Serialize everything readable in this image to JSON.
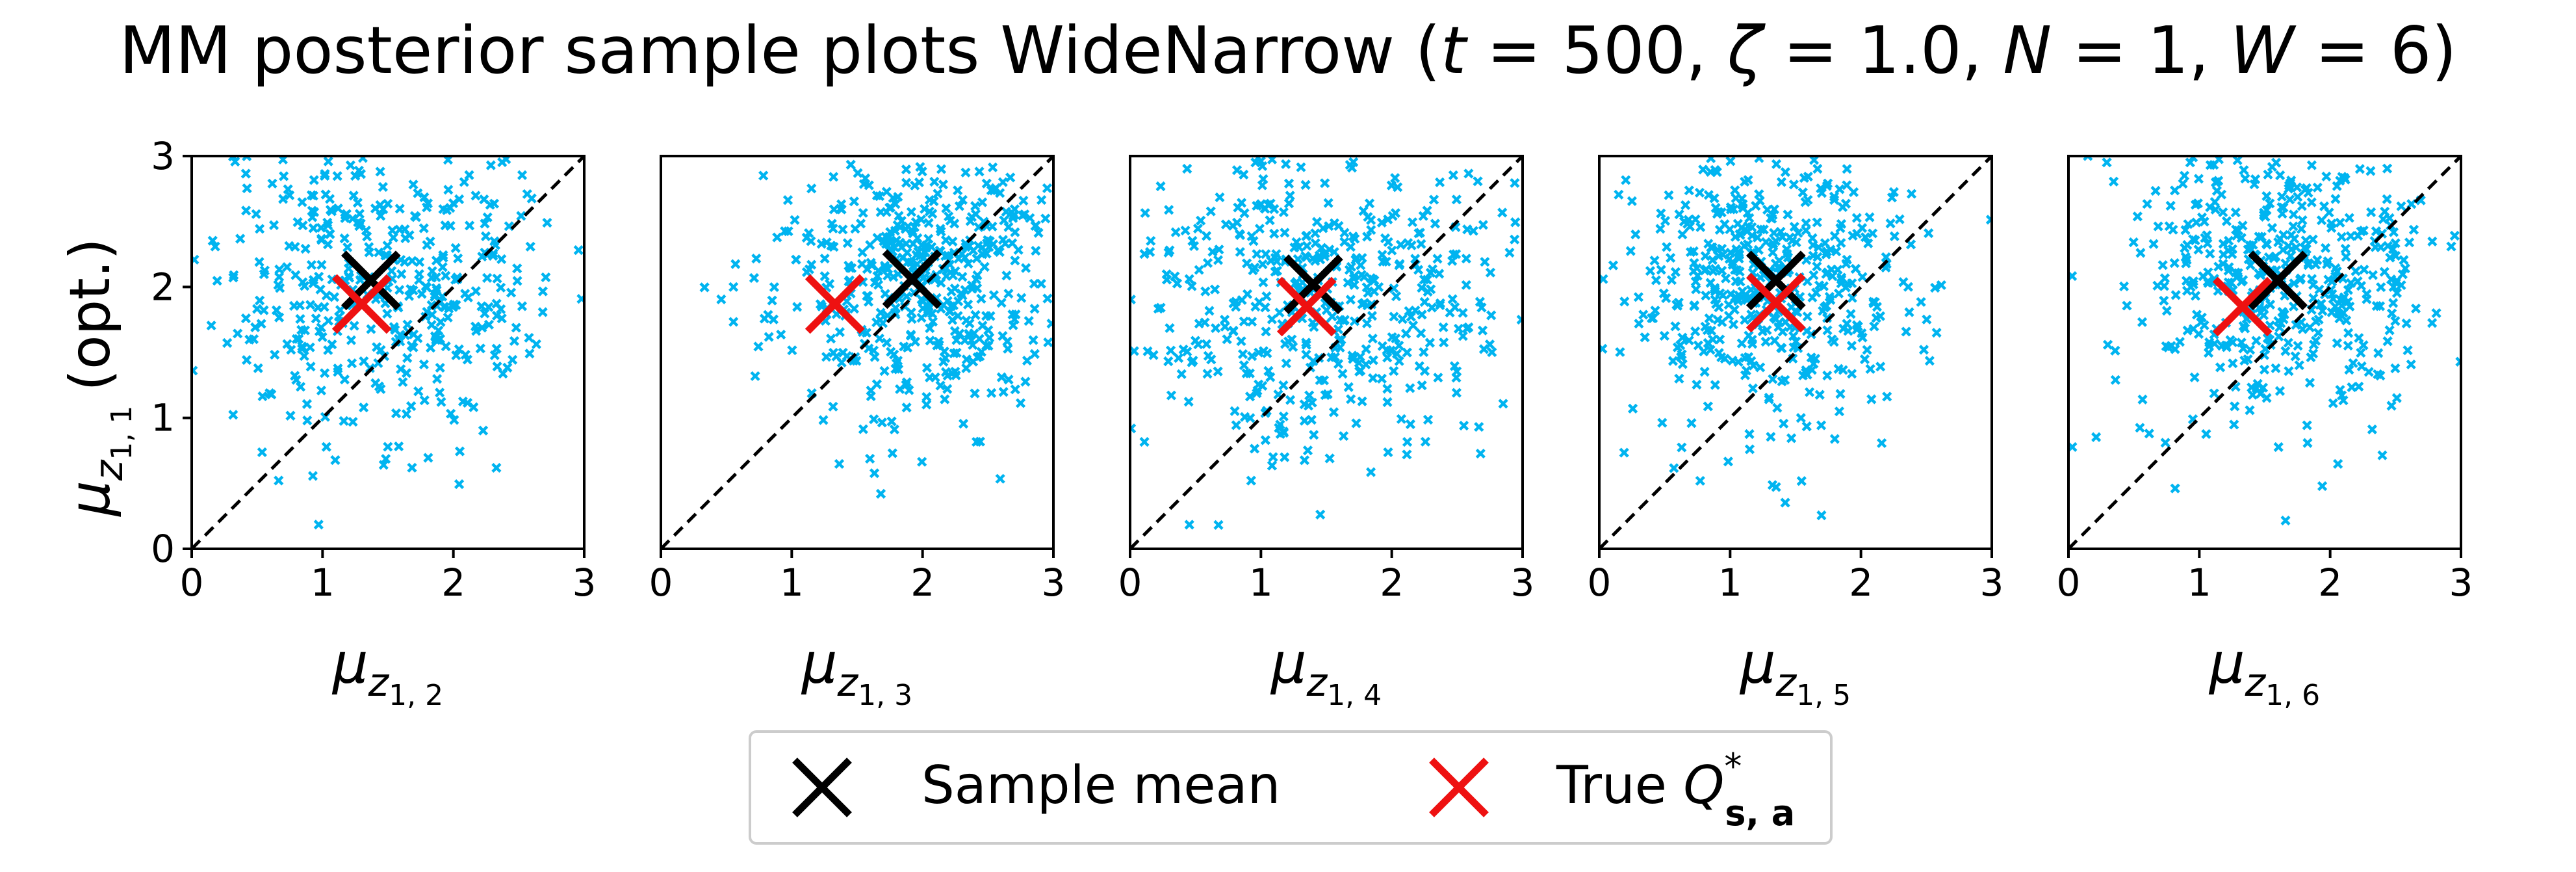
{
  "chart_data": {
    "type": "scatter",
    "title_parts": {
      "prefix": "MM posterior sample plots WideNarrow (",
      "t_sym": "t",
      "t_val": " = 500, ",
      "zeta_sym": "ζ",
      "zeta_val": " = 1.0, ",
      "N_sym": "N",
      "N_val": " = 1, ",
      "W_sym": "W",
      "W_val": " = 6)"
    },
    "ylabel": {
      "mu": "μ",
      "sub": "z",
      "subsub": "1, 1",
      "suffix": "(opt.)"
    },
    "xlim": [
      0,
      3
    ],
    "ylim": [
      0,
      3
    ],
    "ticks": [
      0,
      1,
      2,
      3
    ],
    "grid": false,
    "diagonal_reference": true,
    "colors": {
      "samples": "#00b4f0",
      "sample_mean": "#000000",
      "true_q": "#ee1111",
      "diagonal": "#000000"
    },
    "panels": [
      {
        "xlabel": {
          "mu": "μ",
          "sub": "z",
          "subsub": "1, 2"
        },
        "sample_mean": [
          1.37,
          2.05
        ],
        "true_q": [
          1.3,
          1.87
        ],
        "samples": {
          "count": 450,
          "center": [
            1.45,
            2.05
          ],
          "spread": [
            0.72,
            0.62
          ],
          "seed": 11
        }
      },
      {
        "xlabel": {
          "mu": "μ",
          "sub": "z",
          "subsub": "1, 3"
        },
        "sample_mean": [
          1.92,
          2.06
        ],
        "true_q": [
          1.33,
          1.87
        ],
        "samples": {
          "count": 500,
          "center": [
            1.95,
            2.05
          ],
          "spread": [
            0.55,
            0.55
          ],
          "seed": 23
        }
      },
      {
        "xlabel": {
          "mu": "μ",
          "sub": "z",
          "subsub": "1, 4"
        },
        "sample_mean": [
          1.4,
          2.02
        ],
        "true_q": [
          1.35,
          1.85
        ],
        "samples": {
          "count": 500,
          "center": [
            1.45,
            2.0
          ],
          "spread": [
            0.7,
            0.62
          ],
          "seed": 37
        }
      },
      {
        "xlabel": {
          "mu": "μ",
          "sub": "z",
          "subsub": "1, 5"
        },
        "sample_mean": [
          1.35,
          2.05
        ],
        "true_q": [
          1.35,
          1.88
        ],
        "samples": {
          "count": 500,
          "center": [
            1.35,
            2.0
          ],
          "spread": [
            0.6,
            0.58
          ],
          "seed": 53
        }
      },
      {
        "xlabel": {
          "mu": "μ",
          "sub": "z",
          "subsub": "1, 6"
        },
        "sample_mean": [
          1.6,
          2.05
        ],
        "true_q": [
          1.33,
          1.85
        ],
        "samples": {
          "count": 500,
          "center": [
            1.6,
            2.05
          ],
          "spread": [
            0.65,
            0.58
          ],
          "seed": 71
        }
      }
    ],
    "legend": {
      "placement": "bottom-center",
      "entries": [
        {
          "label": "Sample mean",
          "marker": "x",
          "color": "#000000"
        },
        {
          "label_prefix": "True ",
          "label_q": "Q",
          "label_sup": "*",
          "label_sub": "s, a",
          "marker": "x",
          "color": "#ee1111"
        }
      ]
    }
  }
}
